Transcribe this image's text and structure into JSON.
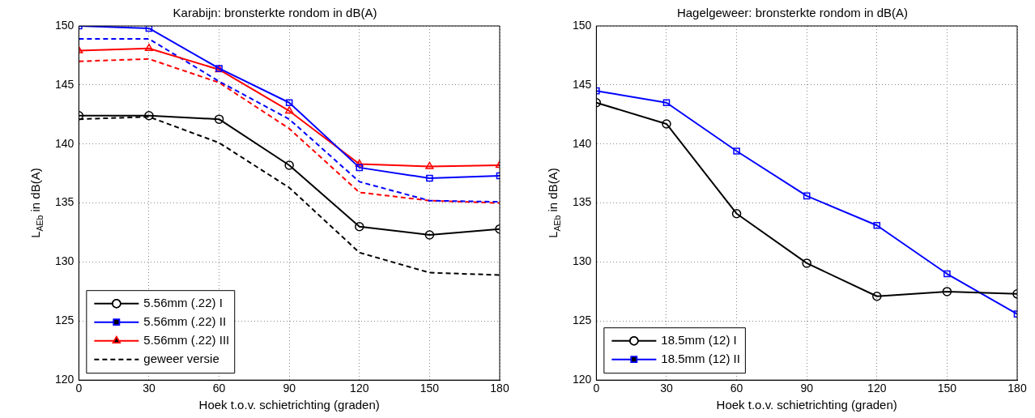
{
  "chart_data": [
    {
      "type": "line",
      "title": "Karabijn: bronsterkte rondom in dB(A)",
      "xlabel": "Hoek t.o.v. schietrichting (graden)",
      "ylabel": "L$_{AEb}$ in dB(A)",
      "x": [
        0,
        30,
        60,
        90,
        120,
        150,
        180
      ],
      "xlim": [
        0,
        180
      ],
      "xticks": [
        0,
        30,
        60,
        90,
        120,
        150,
        180
      ],
      "ylim": [
        120,
        150
      ],
      "yticks": [
        120,
        125,
        130,
        135,
        140,
        145,
        150
      ],
      "grid": true,
      "legend": "bottom left",
      "series": [
        {
          "name": "5.56mm (.22) I",
          "color": "#000000",
          "marker": "circle",
          "line_style": "solid",
          "values": [
            142.4,
            142.4,
            142.1,
            138.2,
            133.0,
            132.3,
            132.8
          ]
        },
        {
          "name": "5.56mm (.22) II",
          "color": "#0000ff",
          "marker": "square",
          "line_style": "solid",
          "values": [
            150.0,
            149.8,
            146.4,
            143.5,
            138.0,
            137.1,
            137.3
          ]
        },
        {
          "name": "5.56mm (.22) III",
          "color": "#ff0000",
          "marker": "triangle",
          "line_style": "solid",
          "values": [
            147.9,
            148.1,
            146.3,
            142.8,
            138.3,
            138.1,
            138.2
          ]
        },
        {
          "name": "geweer versie",
          "color": "#000000",
          "marker": "none",
          "line_style": "dashed",
          "values": [
            142.1,
            142.3,
            140.1,
            136.3,
            130.8,
            129.1,
            128.9
          ]
        },
        {
          "color": "#0000ff",
          "marker": "none",
          "line_style": "dashed",
          "values": [
            148.9,
            148.9,
            145.3,
            142.1,
            136.8,
            135.2,
            135.1
          ]
        },
        {
          "color": "#ff0000",
          "marker": "none",
          "line_style": "dashed",
          "values": [
            147.0,
            147.2,
            145.2,
            141.3,
            135.9,
            135.2,
            135.0
          ]
        }
      ]
    },
    {
      "type": "line",
      "title": "Hagelgeweer: bronsterkte rondom in dB(A)",
      "xlabel": "Hoek t.o.v. schietrichting (graden)",
      "ylabel": "L$_{AEb}$ in dB(A)",
      "x": [
        0,
        30,
        60,
        90,
        120,
        150,
        180
      ],
      "xlim": [
        0,
        180
      ],
      "xticks": [
        0,
        30,
        60,
        90,
        120,
        150,
        180
      ],
      "ylim": [
        120,
        150
      ],
      "yticks": [
        120,
        125,
        130,
        135,
        140,
        145,
        150
      ],
      "grid": true,
      "legend": "bottom left",
      "series": [
        {
          "name": "18.5mm (12) I",
          "color": "#000000",
          "marker": "circle",
          "line_style": "solid",
          "values": [
            143.5,
            141.7,
            134.1,
            129.9,
            127.1,
            127.5,
            127.3
          ]
        },
        {
          "name": "18.5mm (12) II",
          "color": "#0000ff",
          "marker": "square",
          "line_style": "solid",
          "values": [
            144.5,
            143.5,
            139.4,
            135.6,
            133.1,
            129.0,
            125.6
          ]
        }
      ]
    }
  ]
}
